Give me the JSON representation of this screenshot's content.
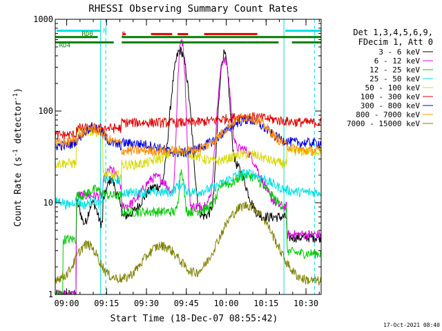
{
  "chart_data": {
    "type": "line",
    "title": "RHESSI Observing Summary Count Rates",
    "xlabel": "Start Time (18-Dec-07 08:55:42)",
    "ylabel": "Count Rate (s⁻¹ detector⁻¹)",
    "ylabel_main": "Count Rate (s",
    "ylabel_sup1": "-1",
    "ylabel_mid": " detector",
    "ylabel_sup2": "-1",
    "ylabel_end": ")",
    "y_scale": "log",
    "ylim": [
      1,
      1000
    ],
    "xlim_minutes": [
      0,
      100
    ],
    "x_ticks": [
      {
        "min": 4.3,
        "label": "09:00"
      },
      {
        "min": 19.3,
        "label": "09:15"
      },
      {
        "min": 34.3,
        "label": "09:30"
      },
      {
        "min": 49.3,
        "label": "09:45"
      },
      {
        "min": 64.3,
        "label": "10:00"
      },
      {
        "min": 79.3,
        "label": "10:15"
      },
      {
        "min": 94.3,
        "label": "10:30"
      }
    ],
    "y_ticks": [
      {
        "value": 1,
        "label": "1"
      },
      {
        "value": 10,
        "label": "10"
      },
      {
        "value": 100,
        "label": "100"
      },
      {
        "value": 1000,
        "label": "1000"
      }
    ],
    "legend_position": "right",
    "legend_header": [
      "Det 1,3,4,5,6,9,",
      "FDecim 1, Att 0"
    ],
    "series": [
      {
        "name": "3 - 6 keV",
        "color": "#000000"
      },
      {
        "name": "6 - 12 keV",
        "color": "#e000e0"
      },
      {
        "name": "12 - 25 keV",
        "color": "#00c800"
      },
      {
        "name": "25 - 50 keV",
        "color": "#00e0e0"
      },
      {
        "name": "50 - 100 keV",
        "color": "#d8d800"
      },
      {
        "name": "100 - 300 keV",
        "color": "#e00000"
      },
      {
        "name": "300 - 800 keV",
        "color": "#0000e0"
      },
      {
        "name": "800 - 7000 keV",
        "color": "#ff8c00"
      },
      {
        "name": "7000 - 15000 keV",
        "color": "#808000"
      }
    ],
    "flag_labels": {
      "n": "N",
      "rd0": "RD0",
      "f": "F",
      "rd4": "RD4"
    },
    "date_stamp": "17-Oct-2021 08:40",
    "night_intervals_minutes": [
      [
        0,
        17
      ],
      [
        86,
        100
      ]
    ],
    "saa_intervals_minutes": [
      [
        0,
        17
      ],
      [
        86,
        100
      ]
    ],
    "flare_intervals_minutes": [
      [
        25.5,
        26.5
      ],
      [
        36,
        44
      ],
      [
        46,
        50
      ],
      [
        56,
        76
      ]
    ],
    "decimation_rd0_intervals_minutes": [
      [
        0,
        16
      ],
      [
        25,
        100
      ]
    ],
    "decimation_rd4_intervals_minutes": [
      [
        0,
        22
      ],
      [
        25,
        51
      ],
      [
        51,
        72
      ],
      [
        72,
        84
      ],
      [
        89,
        100
      ]
    ]
  },
  "colors": {
    "axis": "#000000",
    "night": "#00e0e0",
    "flare": "#e00000",
    "decim": "#008000"
  }
}
